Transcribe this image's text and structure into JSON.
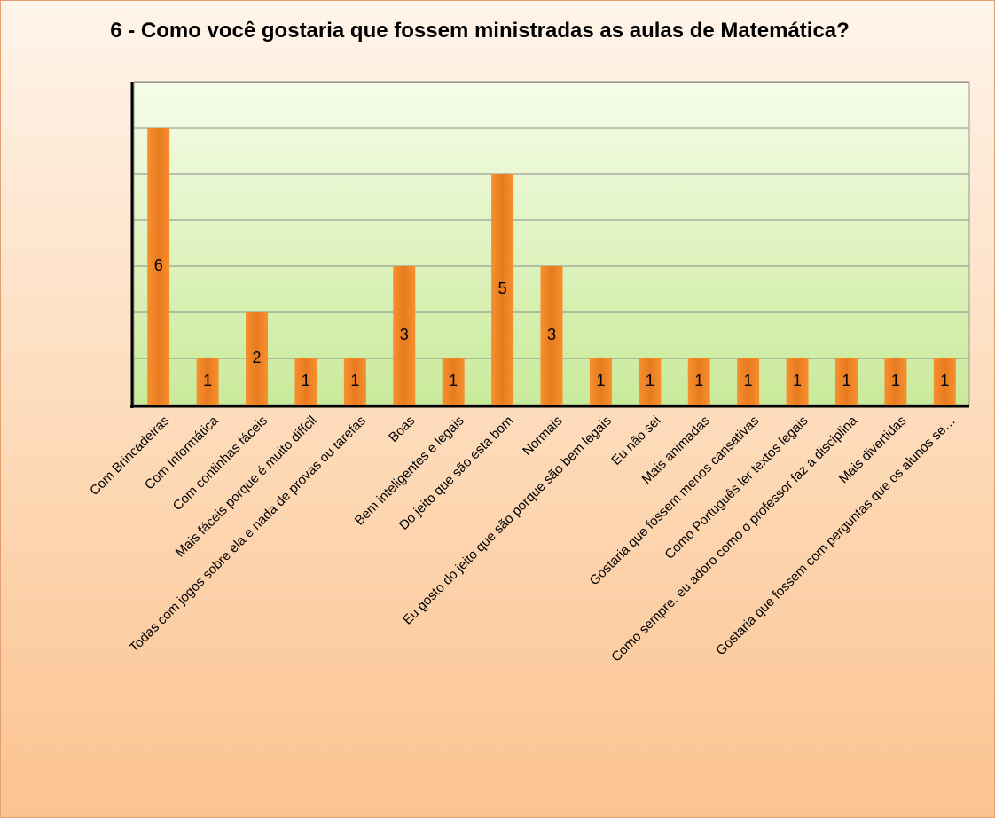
{
  "chart_data": {
    "type": "bar",
    "title": "6 - Como você gostaria que fossem ministradas as aulas de Matemática?",
    "categories": [
      "Com Brincadeiras",
      "Com Informática",
      "Com continhas fáceis",
      "Mais fáceis porque é muito difícil",
      "Todas com jogos sobre ela e nada de provas ou tarefas",
      "Boas",
      "Bem inteligentes e legais",
      "Do jeito que são esta bom",
      "Normais",
      "Eu gosto do jeito que são porque são bem legais",
      "Eu não sei",
      "Mais animadas",
      "Gostaria que fossem menos cansativas",
      "Como Português ler textos legais",
      "Como sempre, eu adoro como o professor faz a disciplina",
      "Mais divertidas",
      "Gostaria que fossem com perguntas que os alunos se…"
    ],
    "values": [
      6,
      1,
      2,
      1,
      1,
      3,
      1,
      5,
      3,
      1,
      1,
      1,
      1,
      1,
      1,
      1,
      1
    ],
    "color": "#f7902f",
    "ylim": [
      0,
      7
    ],
    "yticks": [
      0,
      1,
      2,
      3,
      4,
      5,
      6,
      7
    ],
    "grid": true
  }
}
